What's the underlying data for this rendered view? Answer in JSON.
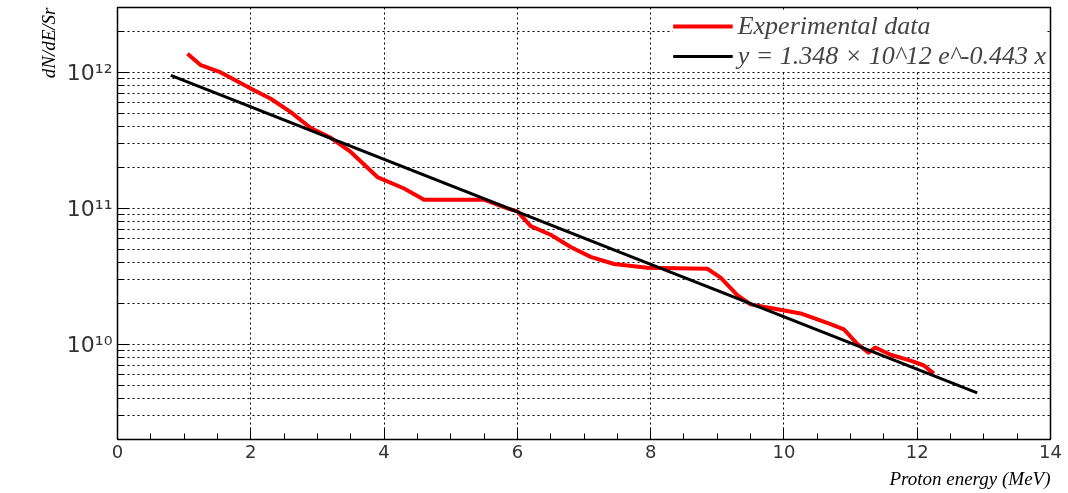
{
  "chart_data": {
    "type": "line",
    "xlabel": "Proton energy (MeV)",
    "ylabel": "dN/dE/Sr",
    "series": [
      {
        "name": "Experimental data",
        "color": "#ff0000",
        "x": [
          1.05,
          1.25,
          1.55,
          2.0,
          2.3,
          2.6,
          2.9,
          3.2,
          3.5,
          3.9,
          4.3,
          4.6,
          5.5,
          5.85,
          6.0,
          6.2,
          6.5,
          6.8,
          7.1,
          7.45,
          7.95,
          8.85,
          9.05,
          9.3,
          9.5,
          9.8,
          10.25,
          10.7,
          10.9,
          11.1,
          11.27,
          11.37,
          11.6,
          11.9,
          12.1,
          12.25
        ],
        "values": [
          1370000000000.0,
          1130000000000.0,
          1000000000000.0,
          760000000000.0,
          640000000000.0,
          510000000000.0,
          390000000000.0,
          330000000000.0,
          260000000000.0,
          170000000000.0,
          140000000000.0,
          116000000000.0,
          116000000000.0,
          100000000000.0,
          95000000000.0,
          74000000000.0,
          64000000000.0,
          52000000000.0,
          44000000000.0,
          39000000000.0,
          36600000000.0,
          36000000000.0,
          31000000000.0,
          23000000000.0,
          19700000000.0,
          18500000000.0,
          16900000000.0,
          14100000000.0,
          12900000000.0,
          10100000000.0,
          8700000000.0,
          9500000000.0,
          8400000000.0,
          7600000000.0,
          7000000000.0,
          6100000000.0
        ]
      },
      {
        "name": "y = 1.348 × 10^12 e^-0.443 x",
        "color": "#000000",
        "x": [
          0.8,
          12.9
        ],
        "values": [
          950000000000.0,
          4400000000.0
        ]
      }
    ],
    "xlim": [
      0,
      14
    ],
    "xticks": [
      0,
      2,
      4,
      6,
      8,
      10,
      12,
      14
    ],
    "ylim": [
      2000000000.0,
      3000000000000.0
    ],
    "yticks": [
      {
        "value": 10000000000.0,
        "label": "10¹⁰"
      },
      {
        "value": 100000000000.0,
        "label": "10¹¹"
      },
      {
        "value": 1000000000000.0,
        "label": "10¹²"
      }
    ],
    "log": "y",
    "grid": true,
    "legend": "top right",
    "marker": "none",
    "line_style": "solid"
  }
}
